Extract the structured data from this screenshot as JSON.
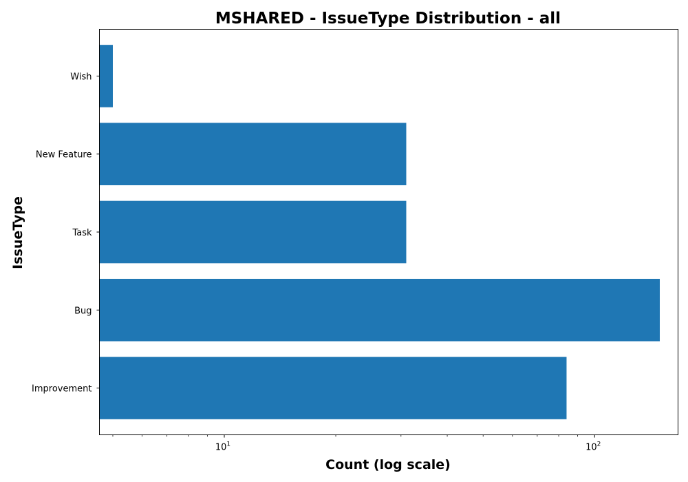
{
  "chart_data": {
    "type": "bar",
    "orientation": "horizontal",
    "title": "MSHARED - IssueType Distribution - all",
    "xlabel": "Count (log scale)",
    "ylabel": "IssueType",
    "x_scale": "log",
    "xlim": [
      4.6,
      168
    ],
    "x_ticks": [
      {
        "value": 10,
        "base": "10",
        "exponent": "1"
      },
      {
        "value": 100,
        "base": "10",
        "exponent": "2"
      }
    ],
    "categories": [
      "Improvement",
      "Bug",
      "Task",
      "New Feature",
      "Wish"
    ],
    "values": [
      84,
      150,
      31,
      31,
      5
    ],
    "bar_color": "#1f77b4",
    "grid": false,
    "legend": "none"
  }
}
